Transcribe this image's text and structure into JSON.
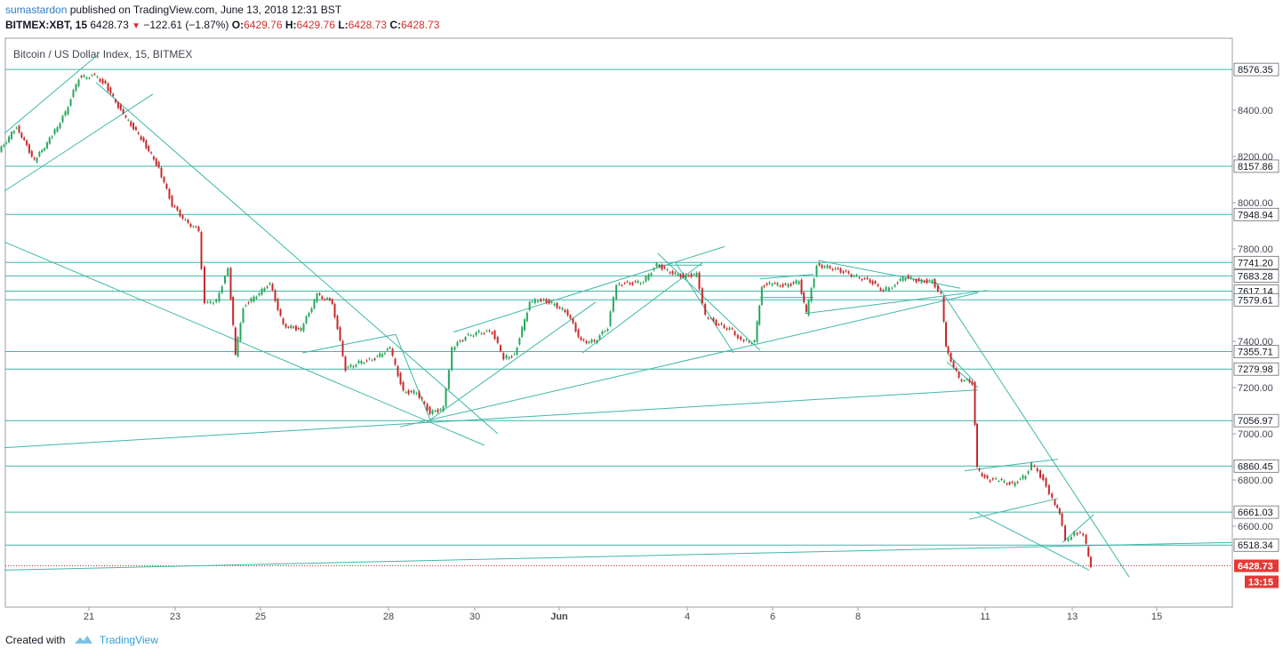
{
  "header": {
    "author": "sumastardon",
    "published": "published on TradingView.com, June 13, 2018 12:31 BST",
    "symbol": "BITMEX:XBT, 15",
    "last": "6428.73",
    "change": "−122.61 (−1.87%)",
    "o_label": "O:",
    "o": "6429.76",
    "h_label": "H:",
    "h": "6429.76",
    "l_label": "L:",
    "l": "6428.73",
    "c_label": "C:",
    "c": "6428.73"
  },
  "footer": {
    "created_with": "Created with",
    "brand": "TradingView"
  },
  "chart_data": {
    "type": "candlestick",
    "title": "Bitcoin / US Dollar Index, 15, BITMEX",
    "ylim": [
      6350,
      8700
    ],
    "y_ticks": [
      6600,
      6800,
      7000,
      7200,
      7400,
      7800,
      8000,
      8200,
      8400
    ],
    "x_ticks": [
      "21",
      "23",
      "25",
      "28",
      "30",
      "Jun",
      "4",
      "6",
      "8",
      "11",
      "13",
      "15"
    ],
    "horizontal_levels": [
      8576.35,
      8157.86,
      7948.94,
      7741.2,
      7683.28,
      7617.14,
      7579.61,
      7355.71,
      7279.98,
      7056.97,
      6860.45,
      6661.03,
      6518.34
    ],
    "last_price": 6428.73,
    "countdown": "13:15",
    "price_path": [
      [
        0,
        8220
      ],
      [
        20,
        8330
      ],
      [
        40,
        8180
      ],
      [
        60,
        8290
      ],
      [
        75,
        8390
      ],
      [
        90,
        8540
      ],
      [
        108,
        8550
      ],
      [
        120,
        8510
      ],
      [
        140,
        8380
      ],
      [
        160,
        8280
      ],
      [
        180,
        8150
      ],
      [
        195,
        7990
      ],
      [
        210,
        7920
      ],
      [
        225,
        7880
      ],
      [
        232,
        7560
      ],
      [
        245,
        7580
      ],
      [
        258,
        7710
      ],
      [
        266,
        7340
      ],
      [
        275,
        7550
      ],
      [
        290,
        7600
      ],
      [
        305,
        7650
      ],
      [
        320,
        7470
      ],
      [
        340,
        7450
      ],
      [
        358,
        7600
      ],
      [
        375,
        7570
      ],
      [
        390,
        7280
      ],
      [
        405,
        7310
      ],
      [
        420,
        7320
      ],
      [
        440,
        7370
      ],
      [
        455,
        7180
      ],
      [
        470,
        7180
      ],
      [
        485,
        7090
      ],
      [
        500,
        7110
      ],
      [
        510,
        7370
      ],
      [
        525,
        7420
      ],
      [
        540,
        7440
      ],
      [
        555,
        7440
      ],
      [
        568,
        7330
      ],
      [
        580,
        7340
      ],
      [
        597,
        7570
      ],
      [
        610,
        7580
      ],
      [
        625,
        7560
      ],
      [
        640,
        7520
      ],
      [
        655,
        7400
      ],
      [
        670,
        7400
      ],
      [
        685,
        7460
      ],
      [
        695,
        7650
      ],
      [
        710,
        7650
      ],
      [
        725,
        7660
      ],
      [
        740,
        7730
      ],
      [
        755,
        7700
      ],
      [
        770,
        7680
      ],
      [
        785,
        7690
      ],
      [
        795,
        7510
      ],
      [
        810,
        7470
      ],
      [
        825,
        7450
      ],
      [
        835,
        7400
      ],
      [
        850,
        7400
      ],
      [
        858,
        7640
      ],
      [
        870,
        7650
      ],
      [
        885,
        7640
      ],
      [
        900,
        7660
      ],
      [
        908,
        7520
      ],
      [
        920,
        7730
      ],
      [
        935,
        7720
      ],
      [
        950,
        7700
      ],
      [
        965,
        7680
      ],
      [
        980,
        7660
      ],
      [
        995,
        7620
      ],
      [
        1005,
        7640
      ],
      [
        1020,
        7680
      ],
      [
        1035,
        7660
      ],
      [
        1050,
        7660
      ],
      [
        1060,
        7600
      ],
      [
        1065,
        7370
      ],
      [
        1080,
        7240
      ],
      [
        1095,
        7220
      ],
      [
        1100,
        6850
      ],
      [
        1112,
        6800
      ],
      [
        1125,
        6800
      ],
      [
        1140,
        6780
      ],
      [
        1155,
        6820
      ],
      [
        1162,
        6870
      ],
      [
        1175,
        6800
      ],
      [
        1185,
        6720
      ],
      [
        1193,
        6650
      ],
      [
        1200,
        6540
      ],
      [
        1210,
        6570
      ],
      [
        1220,
        6560
      ],
      [
        1228,
        6430
      ]
    ],
    "trendlines": [
      [
        [
          5,
          8300
        ],
        [
          110,
          8640
        ]
      ],
      [
        [
          5,
          8050
        ],
        [
          172,
          8470
        ]
      ],
      [
        [
          108,
          8520
        ],
        [
          560,
          7000
        ]
      ],
      [
        [
          5,
          7830
        ],
        [
          545,
          6950
        ]
      ],
      [
        [
          340,
          7350
        ],
        [
          445,
          7430
        ]
      ],
      [
        [
          445,
          7430
        ],
        [
          485,
          7050
        ]
      ],
      [
        [
          5,
          6940
        ],
        [
          1100,
          7190
        ]
      ],
      [
        [
          480,
          7050
        ],
        [
          670,
          7570
        ]
      ],
      [
        [
          450,
          7030
        ],
        [
          1100,
          7610
        ]
      ],
      [
        [
          510,
          7440
        ],
        [
          815,
          7810
        ]
      ],
      [
        [
          655,
          7350
        ],
        [
          790,
          7740
        ]
      ],
      [
        [
          740,
          7780
        ],
        [
          855,
          7360
        ]
      ],
      [
        [
          760,
          7740
        ],
        [
          825,
          7350
        ]
      ],
      [
        [
          740,
          7730
        ],
        [
          790,
          7730
        ]
      ],
      [
        [
          855,
          7670
        ],
        [
          915,
          7690
        ]
      ],
      [
        [
          855,
          7590
        ],
        [
          915,
          7590
        ]
      ],
      [
        [
          920,
          7750
        ],
        [
          1080,
          7630
        ]
      ],
      [
        [
          905,
          7520
        ],
        [
          1110,
          7620
        ]
      ],
      [
        [
          1050,
          7670
        ],
        [
          1270,
          6380
        ]
      ],
      [
        [
          1065,
          7310
        ],
        [
          1100,
          7200
        ]
      ],
      [
        [
          1065,
          7350
        ],
        [
          1095,
          7230
        ]
      ],
      [
        [
          1085,
          6840
        ],
        [
          1190,
          6890
        ]
      ],
      [
        [
          1090,
          6630
        ],
        [
          1190,
          6720
        ]
      ],
      [
        [
          1098,
          6660
        ],
        [
          1225,
          6410
        ]
      ],
      [
        [
          5,
          6410
        ],
        [
          1385,
          6530
        ]
      ],
      [
        [
          1195,
          6530
        ],
        [
          1230,
          6650
        ]
      ]
    ]
  }
}
